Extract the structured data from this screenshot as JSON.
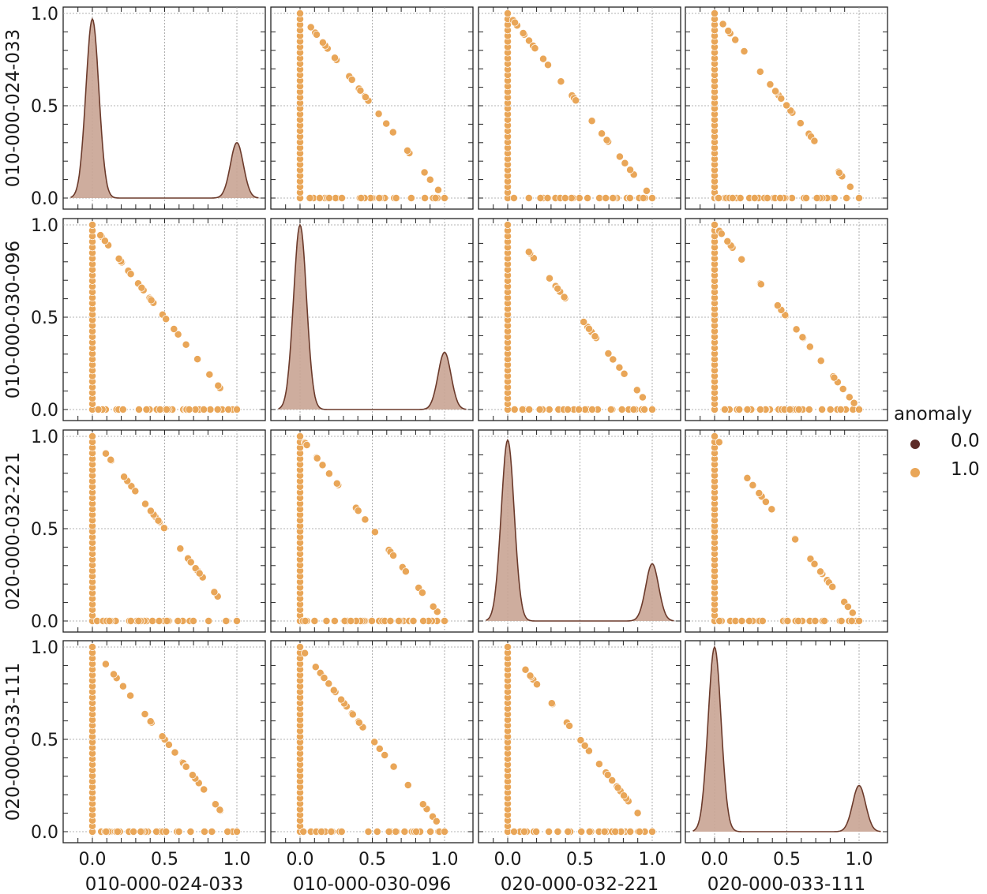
{
  "colors": {
    "points": "#e9a658",
    "point_edge": "#ffffff",
    "kde_fill": "#c9a493",
    "kde_line": "#6b3a2b",
    "legend_0": "#5d2c28",
    "legend_1": "#e9a658",
    "grid": "#9a9a9a",
    "axis": "#222222"
  },
  "chart_data": {
    "type": "scatter",
    "layout": "pairplot-4x4",
    "variables": [
      "010-000-024-033",
      "010-000-030-096",
      "020-000-032-221",
      "020-000-033-111"
    ],
    "axis_range": [
      -0.2,
      1.1
    ],
    "ticks": [
      0.0,
      0.5,
      1.0
    ],
    "tick_labels": [
      "0.0",
      "0.5",
      "1.0"
    ],
    "grid": true,
    "legend": {
      "title": "anomaly",
      "placement": "right",
      "entries": [
        {
          "label": "0.0",
          "color_key": "legend_0"
        },
        {
          "label": "1.0",
          "color_key": "legend_1"
        }
      ]
    },
    "diagonal_kde": [
      {
        "variable": "010-000-024-033",
        "peak_0": 0.97,
        "peak_1": 0.3
      },
      {
        "variable": "010-000-030-096",
        "peak_0": 1.0,
        "peak_1": 0.31
      },
      {
        "variable": "020-000-032-221",
        "peak_0": 0.98,
        "peak_1": 0.31
      },
      {
        "variable": "020-000-033-111",
        "peak_0": 1.0,
        "peak_1": 0.25
      }
    ],
    "scatter_pattern": "points lie on x=0, y=0 and along the line x+y=1",
    "anomaly_class_shown": "1.0"
  }
}
